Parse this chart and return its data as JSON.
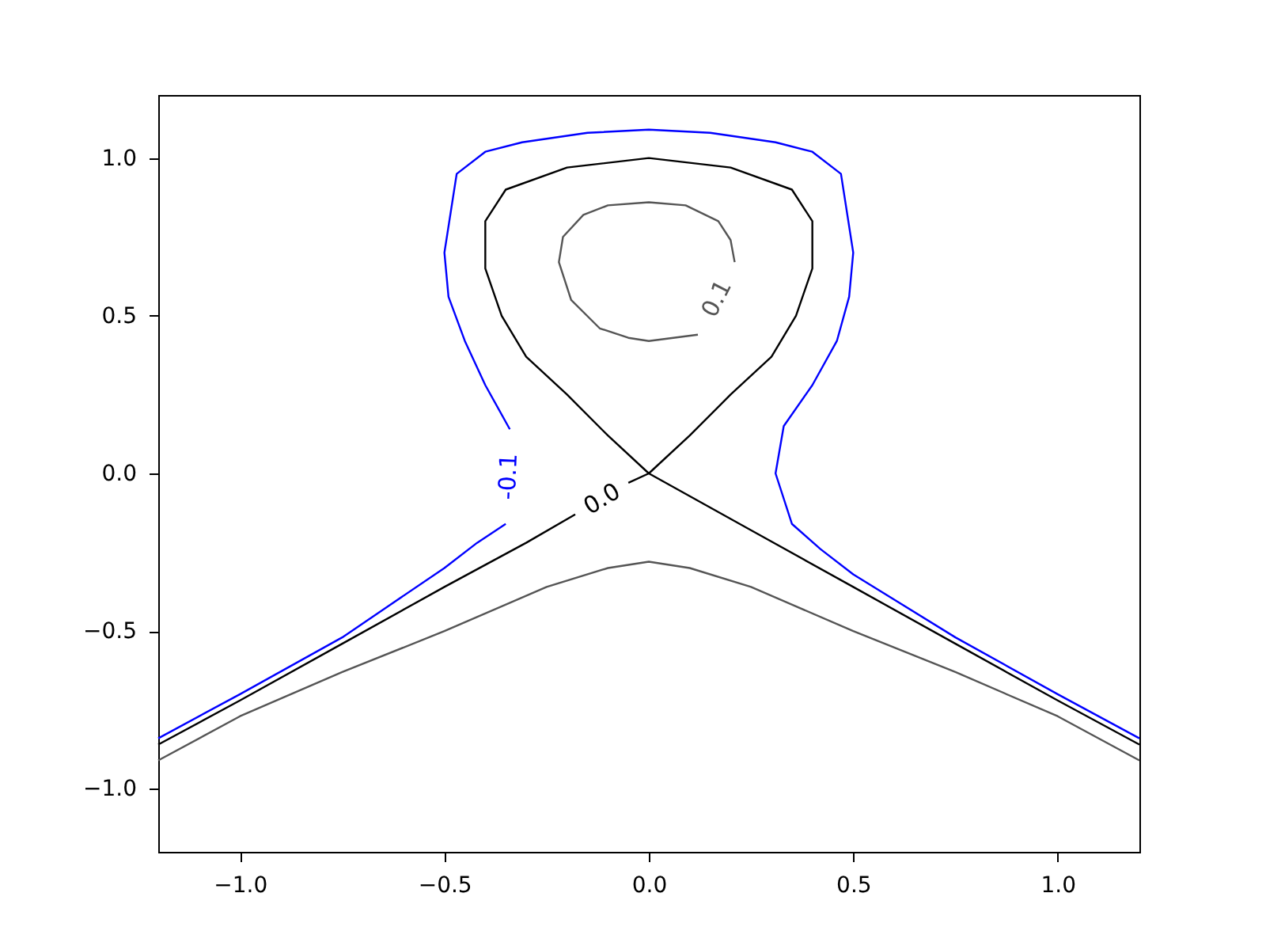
{
  "chart_data": {
    "type": "line",
    "xlim": [
      -1.2,
      1.2
    ],
    "ylim": [
      -1.2,
      1.2
    ],
    "xticks": [
      {
        "value": -1,
        "label": "−1.0"
      },
      {
        "value": -0.5,
        "label": "−0.5"
      },
      {
        "value": 0,
        "label": "0.0"
      },
      {
        "value": 0.5,
        "label": "0.5"
      },
      {
        "value": 1,
        "label": "1.0"
      }
    ],
    "yticks": [
      {
        "value": -1,
        "label": "−1.0"
      },
      {
        "value": -0.5,
        "label": "−0.5"
      },
      {
        "value": 0,
        "label": "0.0"
      },
      {
        "value": 0.5,
        "label": "0.5"
      },
      {
        "value": 1,
        "label": "1.0"
      }
    ],
    "grid": false,
    "marker": "none",
    "line_style": "solid",
    "series": [
      {
        "name": "-0.1",
        "color": "#0000ff",
        "x": [
          -1.2,
          -1.0,
          -0.75,
          -0.5,
          -0.42,
          -0.35,
          null,
          -0.34,
          -0.4,
          -0.45,
          -0.49,
          -0.5,
          -0.47,
          -0.4,
          -0.31,
          -0.15,
          0,
          0.15,
          0.31,
          0.4,
          0.47,
          0.5,
          0.49,
          0.46,
          0.4,
          0.33,
          0.31,
          0.35,
          0.42,
          0.5,
          0.75,
          1.0,
          1.2
        ],
        "values": [
          -0.84,
          -0.7,
          -0.52,
          -0.3,
          -0.22,
          -0.16,
          null,
          0.14,
          0.28,
          0.42,
          0.56,
          0.7,
          0.95,
          1.02,
          1.05,
          1.08,
          1.09,
          1.08,
          1.05,
          1.02,
          0.95,
          0.7,
          0.56,
          0.42,
          0.28,
          0.15,
          0.0,
          -0.16,
          -0.24,
          -0.32,
          -0.52,
          -0.7,
          -0.84
        ]
      },
      {
        "name": "0.0",
        "color": "#000000",
        "x": [
          -1.2,
          -1.0,
          -0.75,
          -0.5,
          -0.3,
          -0.18,
          null,
          -0.05,
          0,
          0.1,
          0.2,
          0.3,
          0.36,
          0.4,
          0.4,
          0.35,
          0.2,
          0,
          -0.2,
          -0.35,
          -0.4,
          -0.4,
          -0.36,
          -0.3,
          -0.2,
          -0.1,
          0,
          0.25,
          0.5,
          0.75,
          1.0,
          1.2
        ],
        "values": [
          -0.86,
          -0.72,
          -0.54,
          -0.36,
          -0.22,
          -0.13,
          null,
          -0.03,
          0,
          0.12,
          0.25,
          0.37,
          0.5,
          0.65,
          0.8,
          0.9,
          0.97,
          1.0,
          0.97,
          0.9,
          0.8,
          0.65,
          0.5,
          0.37,
          0.25,
          0.12,
          0,
          -0.18,
          -0.36,
          -0.54,
          -0.72,
          -0.86
        ]
      },
      {
        "name": "0.1",
        "color": "#555555",
        "x": [
          0.21,
          0.2,
          0.17,
          0.09,
          0,
          -0.1,
          -0.16,
          -0.21,
          -0.22,
          -0.19,
          -0.12,
          -0.05,
          0,
          0.06,
          0.12,
          null,
          -1.2,
          -1.0,
          -0.75,
          -0.5,
          -0.25,
          -0.1,
          0,
          0.1,
          0.25,
          0.5,
          0.75,
          1.0,
          1.2
        ],
        "values": [
          0.67,
          0.74,
          0.8,
          0.85,
          0.86,
          0.85,
          0.82,
          0.75,
          0.67,
          0.55,
          0.46,
          0.43,
          0.42,
          0.43,
          0.44,
          null,
          -0.91,
          -0.77,
          -0.63,
          -0.5,
          -0.36,
          -0.3,
          -0.28,
          -0.3,
          -0.36,
          -0.5,
          -0.63,
          -0.77,
          -0.91
        ]
      }
    ]
  }
}
